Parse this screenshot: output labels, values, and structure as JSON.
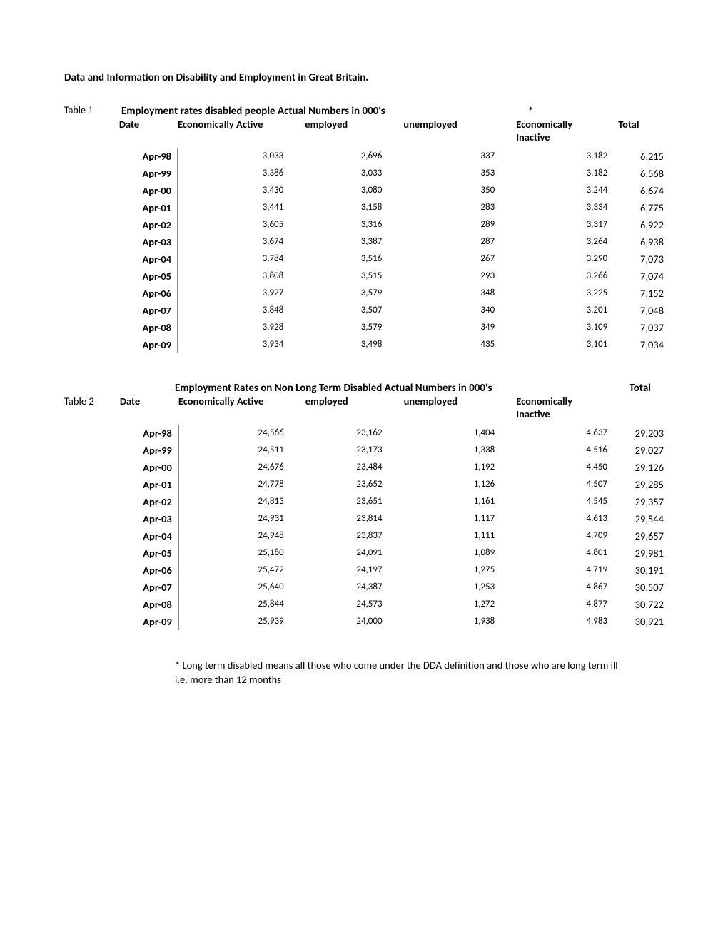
{
  "doc_title": "Data and Information on Disability and Employment in Great Britain.",
  "table1": {
    "label": "Table 1",
    "title": "Employment rates disabled people Actual Numbers in 000's",
    "asterisk": "*",
    "headers": {
      "date": "Date",
      "econ_active": "Economically Active",
      "employed": "employed",
      "unemployed": "unemployed",
      "econ_inactive": "Economically Inactive",
      "total": "Total"
    },
    "rows": [
      {
        "date": "Apr-98",
        "ea": "3,033",
        "emp": "2,696",
        "unemp": "337",
        "ei": "3,182",
        "total": "6,215"
      },
      {
        "date": "Apr-99",
        "ea": "3,386",
        "emp": "3,033",
        "unemp": "353",
        "ei": "3,182",
        "total": "6,568"
      },
      {
        "date": "Apr-00",
        "ea": "3,430",
        "emp": "3,080",
        "unemp": "350",
        "ei": "3,244",
        "total": "6,674"
      },
      {
        "date": "Apr-01",
        "ea": "3,441",
        "emp": "3,158",
        "unemp": "283",
        "ei": "3,334",
        "total": "6,775"
      },
      {
        "date": "Apr-02",
        "ea": "3,605",
        "emp": "3,316",
        "unemp": "289",
        "ei": "3,317",
        "total": "6,922"
      },
      {
        "date": "Apr-03",
        "ea": "3,674",
        "emp": "3,387",
        "unemp": "287",
        "ei": "3,264",
        "total": "6,938"
      },
      {
        "date": "Apr-04",
        "ea": "3,784",
        "emp": "3,516",
        "unemp": "267",
        "ei": "3,290",
        "total": "7,073"
      },
      {
        "date": "Apr-05",
        "ea": "3,808",
        "emp": "3,515",
        "unemp": "293",
        "ei": "3,266",
        "total": "7,074"
      },
      {
        "date": "Apr-06",
        "ea": "3,927",
        "emp": "3,579",
        "unemp": "348",
        "ei": "3,225",
        "total": "7,152"
      },
      {
        "date": "Apr-07",
        "ea": "3,848",
        "emp": "3,507",
        "unemp": "340",
        "ei": "3,201",
        "total": "7,048"
      },
      {
        "date": "Apr-08",
        "ea": "3,928",
        "emp": "3,579",
        "unemp": "349",
        "ei": "3,109",
        "total": "7,037"
      },
      {
        "date": "Apr-09",
        "ea": "3,934",
        "emp": "3,498",
        "unemp": "435",
        "ei": "3,101",
        "total": "7,034"
      }
    ]
  },
  "table2": {
    "label": "Table 2",
    "title": "Employment Rates on Non Long Term Disabled Actual Numbers in 000's",
    "total_label": "Total",
    "headers": {
      "date": "Date",
      "econ_active": "Economically Active",
      "employed": "employed",
      "unemployed": "unemployed",
      "econ_inactive": "Economically Inactive"
    },
    "rows": [
      {
        "date": "Apr-98",
        "ea": "24,566",
        "emp": "23,162",
        "unemp": "1,404",
        "ei": "4,637",
        "total": "29,203"
      },
      {
        "date": "Apr-99",
        "ea": "24,511",
        "emp": "23,173",
        "unemp": "1,338",
        "ei": "4,516",
        "total": "29,027"
      },
      {
        "date": "Apr-00",
        "ea": "24,676",
        "emp": "23,484",
        "unemp": "1,192",
        "ei": "4,450",
        "total": "29,126"
      },
      {
        "date": "Apr-01",
        "ea": "24,778",
        "emp": "23,652",
        "unemp": "1,126",
        "ei": "4,507",
        "total": "29,285"
      },
      {
        "date": "Apr-02",
        "ea": "24,813",
        "emp": "23,651",
        "unemp": "1,161",
        "ei": "4,545",
        "total": "29,357"
      },
      {
        "date": "Apr-03",
        "ea": "24,931",
        "emp": "23,814",
        "unemp": "1,117",
        "ei": "4,613",
        "total": "29,544"
      },
      {
        "date": "Apr-04",
        "ea": "24,948",
        "emp": "23,837",
        "unemp": "1,111",
        "ei": "4,709",
        "total": "29,657"
      },
      {
        "date": "Apr-05",
        "ea": "25,180",
        "emp": "24,091",
        "unemp": "1,089",
        "ei": "4,801",
        "total": "29,981"
      },
      {
        "date": "Apr-06",
        "ea": "25,472",
        "emp": "24,197",
        "unemp": "1,275",
        "ei": "4,719",
        "total": "30,191"
      },
      {
        "date": "Apr-07",
        "ea": "25,640",
        "emp": "24,387",
        "unemp": "1,253",
        "ei": "4,867",
        "total": "30,507"
      },
      {
        "date": "Apr-08",
        "ea": "25,844",
        "emp": "24,573",
        "unemp": "1,272",
        "ei": "4,877",
        "total": "30,722"
      },
      {
        "date": "Apr-09",
        "ea": "25,939",
        "emp": "24,000",
        "unemp": "1,938",
        "ei": "4,983",
        "total": "30,921"
      }
    ]
  },
  "footnote": "* Long term disabled means all those who come under the DDA definition and those who are long term ill i.e. more than 12 months"
}
